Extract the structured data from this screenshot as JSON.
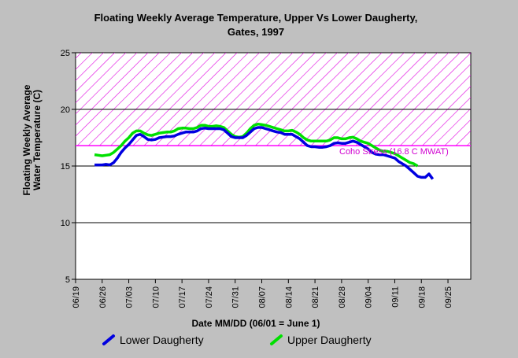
{
  "chart_data": {
    "type": "line",
    "title_lines": [
      "Floating Weekly Average Temperature, Upper Vs Lower Daugherty,",
      "Gates, 1997"
    ],
    "xlabel": "Date MM/DD (06/01 = June 1)",
    "ylabel_lines": [
      "Floating Weekly Average",
      "Water Temperature (C)"
    ],
    "xlim": [
      "06/19",
      "10/01"
    ],
    "ylim": [
      5,
      25
    ],
    "x_ticks": [
      "06/19",
      "06/26",
      "07/03",
      "07/10",
      "07/17",
      "07/24",
      "07/31",
      "08/07",
      "08/14",
      "08/21",
      "08/28",
      "09/04",
      "09/11",
      "09/18",
      "09/25"
    ],
    "y_ticks": [
      5,
      10,
      15,
      20,
      25
    ],
    "grid": "horizontal",
    "threshold": {
      "value": 16.8,
      "upper": 25,
      "label": "Coho Stress (16.8 C MWAT)",
      "color": "#ff00ff"
    },
    "series": [
      {
        "name": "Lower Daugherty",
        "color": "#0000e0",
        "points": [
          [
            "06/24",
            15.1
          ],
          [
            "06/25",
            15.1
          ],
          [
            "06/26",
            15.1
          ],
          [
            "06/27",
            15.15
          ],
          [
            "06/28",
            15.1
          ],
          [
            "06/29",
            15.3
          ],
          [
            "06/30",
            15.7
          ],
          [
            "07/01",
            16.2
          ],
          [
            "07/02",
            16.6
          ],
          [
            "07/03",
            16.9
          ],
          [
            "07/04",
            17.3
          ],
          [
            "07/05",
            17.7
          ],
          [
            "07/06",
            17.8
          ],
          [
            "07/07",
            17.6
          ],
          [
            "07/08",
            17.35
          ],
          [
            "07/09",
            17.3
          ],
          [
            "07/10",
            17.35
          ],
          [
            "07/11",
            17.5
          ],
          [
            "07/12",
            17.55
          ],
          [
            "07/13",
            17.6
          ],
          [
            "07/14",
            17.6
          ],
          [
            "07/15",
            17.65
          ],
          [
            "07/16",
            17.8
          ],
          [
            "07/17",
            17.9
          ],
          [
            "07/18",
            18.0
          ],
          [
            "07/19",
            18.0
          ],
          [
            "07/20",
            18.0
          ],
          [
            "07/21",
            18.1
          ],
          [
            "07/22",
            18.3
          ],
          [
            "07/23",
            18.35
          ],
          [
            "07/24",
            18.3
          ],
          [
            "07/25",
            18.3
          ],
          [
            "07/26",
            18.3
          ],
          [
            "07/27",
            18.3
          ],
          [
            "07/28",
            18.2
          ],
          [
            "07/29",
            17.9
          ],
          [
            "07/30",
            17.6
          ],
          [
            "07/31",
            17.5
          ],
          [
            "08/01",
            17.5
          ],
          [
            "08/02",
            17.5
          ],
          [
            "08/03",
            17.7
          ],
          [
            "08/04",
            18.0
          ],
          [
            "08/05",
            18.3
          ],
          [
            "08/06",
            18.4
          ],
          [
            "08/07",
            18.4
          ],
          [
            "08/08",
            18.3
          ],
          [
            "08/09",
            18.2
          ],
          [
            "08/10",
            18.1
          ],
          [
            "08/11",
            18.0
          ],
          [
            "08/12",
            17.95
          ],
          [
            "08/13",
            17.8
          ],
          [
            "08/14",
            17.8
          ],
          [
            "08/15",
            17.8
          ],
          [
            "08/16",
            17.6
          ],
          [
            "08/17",
            17.4
          ],
          [
            "08/18",
            17.1
          ],
          [
            "08/19",
            16.8
          ],
          [
            "08/20",
            16.7
          ],
          [
            "08/21",
            16.7
          ],
          [
            "08/22",
            16.65
          ],
          [
            "08/23",
            16.65
          ],
          [
            "08/24",
            16.7
          ],
          [
            "08/25",
            16.8
          ],
          [
            "08/26",
            17.0
          ],
          [
            "08/27",
            17.05
          ],
          [
            "08/28",
            17.0
          ],
          [
            "08/29",
            17.0
          ],
          [
            "08/30",
            17.1
          ],
          [
            "08/31",
            17.2
          ],
          [
            "09/01",
            17.1
          ],
          [
            "09/02",
            16.9
          ],
          [
            "09/03",
            16.7
          ],
          [
            "09/04",
            16.5
          ],
          [
            "09/05",
            16.2
          ],
          [
            "09/06",
            16.05
          ],
          [
            "09/07",
            16.0
          ],
          [
            "09/08",
            16.0
          ],
          [
            "09/09",
            15.9
          ],
          [
            "09/10",
            15.8
          ],
          [
            "09/11",
            15.7
          ],
          [
            "09/12",
            15.4
          ],
          [
            "09/13",
            15.2
          ],
          [
            "09/14",
            15.0
          ],
          [
            "09/15",
            14.7
          ],
          [
            "09/16",
            14.4
          ],
          [
            "09/17",
            14.1
          ],
          [
            "09/18",
            14.0
          ],
          [
            "09/19",
            14.0
          ],
          [
            "09/20",
            14.3
          ],
          [
            "09/21",
            13.85
          ]
        ]
      },
      {
        "name": "Upper Daugherty",
        "color": "#00e000",
        "points": [
          [
            "06/24",
            16.0
          ],
          [
            "06/25",
            15.95
          ],
          [
            "06/26",
            15.9
          ],
          [
            "06/27",
            15.95
          ],
          [
            "06/28",
            16.0
          ],
          [
            "06/29",
            16.2
          ],
          [
            "06/30",
            16.5
          ],
          [
            "07/01",
            16.8
          ],
          [
            "07/02",
            17.2
          ],
          [
            "07/03",
            17.5
          ],
          [
            "07/04",
            17.9
          ],
          [
            "07/05",
            18.1
          ],
          [
            "07/06",
            18.1
          ],
          [
            "07/07",
            17.9
          ],
          [
            "07/08",
            17.75
          ],
          [
            "07/09",
            17.7
          ],
          [
            "07/10",
            17.8
          ],
          [
            "07/11",
            17.9
          ],
          [
            "07/12",
            17.95
          ],
          [
            "07/13",
            18.0
          ],
          [
            "07/14",
            18.0
          ],
          [
            "07/15",
            18.1
          ],
          [
            "07/16",
            18.3
          ],
          [
            "07/17",
            18.35
          ],
          [
            "07/18",
            18.35
          ],
          [
            "07/19",
            18.3
          ],
          [
            "07/20",
            18.3
          ],
          [
            "07/21",
            18.4
          ],
          [
            "07/22",
            18.6
          ],
          [
            "07/23",
            18.6
          ],
          [
            "07/24",
            18.5
          ],
          [
            "07/25",
            18.5
          ],
          [
            "07/26",
            18.55
          ],
          [
            "07/27",
            18.5
          ],
          [
            "07/28",
            18.4
          ],
          [
            "07/29",
            18.1
          ],
          [
            "07/30",
            17.8
          ],
          [
            "07/31",
            17.6
          ],
          [
            "08/01",
            17.55
          ],
          [
            "08/02",
            17.6
          ],
          [
            "08/03",
            17.9
          ],
          [
            "08/04",
            18.3
          ],
          [
            "08/05",
            18.6
          ],
          [
            "08/06",
            18.7
          ],
          [
            "08/07",
            18.65
          ],
          [
            "08/08",
            18.6
          ],
          [
            "08/09",
            18.5
          ],
          [
            "08/10",
            18.4
          ],
          [
            "08/11",
            18.3
          ],
          [
            "08/12",
            18.2
          ],
          [
            "08/13",
            18.1
          ],
          [
            "08/14",
            18.1
          ],
          [
            "08/15",
            18.15
          ],
          [
            "08/16",
            18.0
          ],
          [
            "08/17",
            17.8
          ],
          [
            "08/18",
            17.5
          ],
          [
            "08/19",
            17.3
          ],
          [
            "08/20",
            17.2
          ],
          [
            "08/21",
            17.2
          ],
          [
            "08/22",
            17.2
          ],
          [
            "08/23",
            17.2
          ],
          [
            "08/24",
            17.2
          ],
          [
            "08/25",
            17.3
          ],
          [
            "08/26",
            17.5
          ],
          [
            "08/27",
            17.5
          ],
          [
            "08/28",
            17.4
          ],
          [
            "08/29",
            17.4
          ],
          [
            "08/30",
            17.5
          ],
          [
            "08/31",
            17.55
          ],
          [
            "09/01",
            17.4
          ],
          [
            "09/02",
            17.2
          ],
          [
            "09/03",
            17.1
          ],
          [
            "09/04",
            17.0
          ],
          [
            "09/05",
            16.8
          ],
          [
            "09/06",
            16.6
          ],
          [
            "09/07",
            16.4
          ],
          [
            "09/08",
            16.3
          ],
          [
            "09/09",
            16.3
          ],
          [
            "09/10",
            16.2
          ],
          [
            "09/11",
            16.1
          ],
          [
            "09/12",
            15.9
          ],
          [
            "09/13",
            15.7
          ],
          [
            "09/14",
            15.5
          ],
          [
            "09/15",
            15.3
          ],
          [
            "09/16",
            15.2
          ],
          [
            "09/17",
            15.0
          ]
        ]
      }
    ]
  }
}
